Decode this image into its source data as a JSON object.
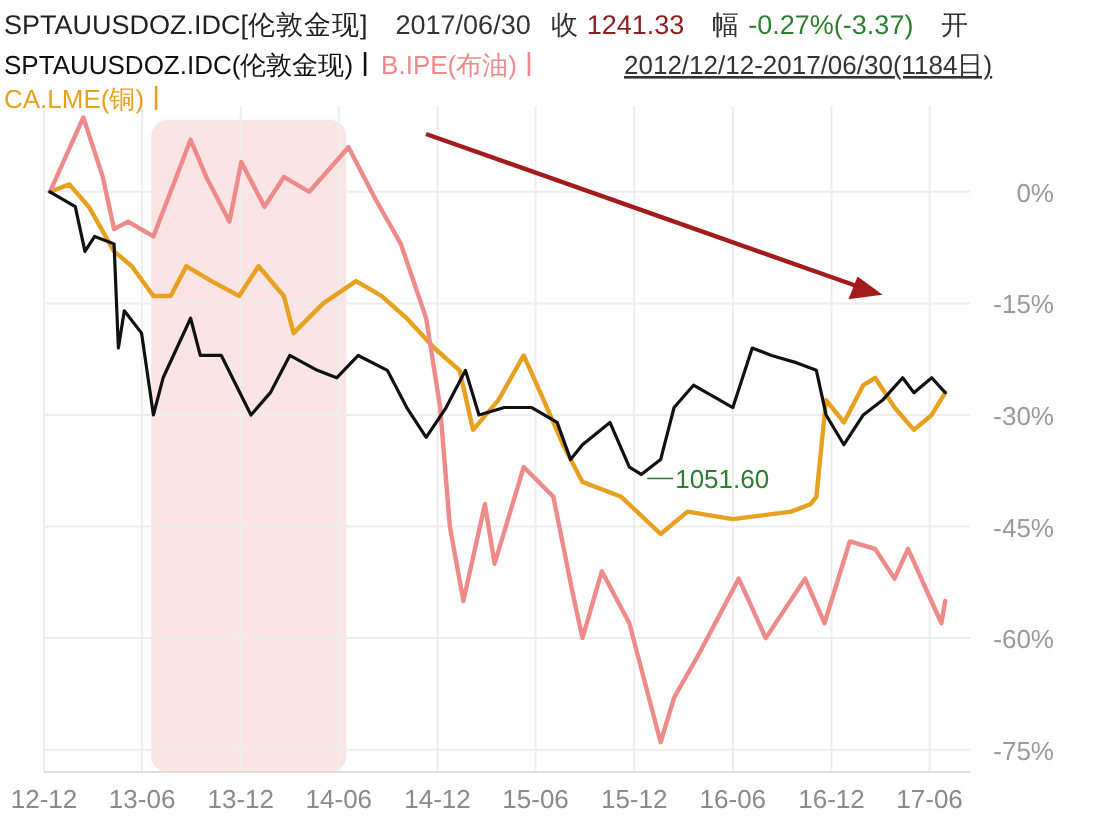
{
  "chart_data": {
    "type": "line",
    "annotations": [
      "SPTAUUSDOZ.IDC[伦敦金现]",
      "2017/06/30",
      "收",
      "1241.33",
      "幅",
      "-0.27%(-3.37)",
      "开",
      "2012/12/12-2017/06/30(1184日)",
      {
        "text": "1051.60",
        "x": "2015-12-14",
        "y": -38
      }
    ],
    "xlim": [
      "2012-12-01",
      "2017-08-15"
    ],
    "ylim": [
      -78,
      11
    ],
    "xticks": [
      {
        "value": "2012-12-01",
        "label": "12-12"
      },
      {
        "value": "2013-06-01",
        "label": "13-06"
      },
      {
        "value": "2013-12-01",
        "label": "13-12"
      },
      {
        "value": "2014-06-01",
        "label": "14-06"
      },
      {
        "value": "2014-12-01",
        "label": "14-12"
      },
      {
        "value": "2015-06-01",
        "label": "15-06"
      },
      {
        "value": "2015-12-01",
        "label": "15-12"
      },
      {
        "value": "2016-06-01",
        "label": "16-06"
      },
      {
        "value": "2016-12-01",
        "label": "16-12"
      },
      {
        "value": "2017-06-01",
        "label": "17-06"
      }
    ],
    "yticks": [
      {
        "value": 0,
        "label": "0%"
      },
      {
        "value": -15,
        "label": "-15%"
      },
      {
        "value": -30,
        "label": "-30%"
      },
      {
        "value": -45,
        "label": "-45%"
      },
      {
        "value": -60,
        "label": "-60%"
      },
      {
        "value": -75,
        "label": "-75%"
      }
    ],
    "grid": true,
    "legend": "top left",
    "bands": [
      {
        "axis": "x",
        "from": "2013-06-18",
        "to": "2014-06-15",
        "color": "#fbe4e4"
      }
    ],
    "series": [
      {
        "name": "SPTAUUSDOZ.IDC(伦敦金现)",
        "color": "#111111",
        "x": [
          "2012-12-12",
          "2013-01-28",
          "2013-02-15",
          "2013-03-05",
          "2013-04-10",
          "2013-04-18",
          "2013-04-29",
          "2013-05-31",
          "2013-06-22",
          "2013-07-10",
          "2013-08-30",
          "2013-09-17",
          "2013-10-26",
          "2013-12-20",
          "2014-01-25",
          "2014-03-02",
          "2014-04-22",
          "2014-05-28",
          "2014-07-07",
          "2014-08-30",
          "2014-10-05",
          "2014-11-10",
          "2014-12-17",
          "2015-01-22",
          "2015-02-16",
          "2015-04-04",
          "2015-05-25",
          "2015-07-11",
          "2015-08-05",
          "2015-08-27",
          "2015-10-17",
          "2015-11-22",
          "2015-12-14",
          "2016-01-19",
          "2016-02-13",
          "2016-03-20",
          "2016-06-01",
          "2016-07-07",
          "2016-08-12",
          "2016-09-28",
          "2016-11-03",
          "2016-11-21",
          "2016-12-24",
          "2017-01-29",
          "2017-03-06",
          "2017-04-12",
          "2017-05-03",
          "2017-06-05",
          "2017-06-30"
        ],
        "values": [
          0,
          -2,
          -8,
          -6,
          -7,
          -21,
          -16,
          -19,
          -30,
          -25,
          -17,
          -22,
          -22,
          -30,
          -27,
          -22,
          -24,
          -25,
          -22,
          -24,
          -29,
          -33,
          -29,
          -24,
          -30,
          -29,
          -29,
          -31,
          -36,
          -34,
          -31,
          -37,
          -38,
          -36,
          -29,
          -26,
          -29,
          -21,
          -22,
          -23,
          -24,
          -30,
          -34,
          -30,
          -28,
          -25,
          -27,
          -25,
          -27
        ]
      },
      {
        "name": "B.IPE(布油)",
        "color": "#ee8a8a",
        "x": [
          "2012-12-12",
          "2013-02-12",
          "2013-03-20",
          "2013-04-10",
          "2013-05-06",
          "2013-06-22",
          "2013-08-30",
          "2013-09-28",
          "2013-11-10",
          "2013-12-02",
          "2014-01-14",
          "2014-02-19",
          "2014-04-07",
          "2014-06-19",
          "2014-08-08",
          "2014-09-24",
          "2014-11-10",
          "2014-12-06",
          "2014-12-24",
          "2015-01-18",
          "2015-02-27",
          "2015-03-17",
          "2015-05-10",
          "2015-07-04",
          "2015-08-09",
          "2015-08-27",
          "2015-10-02",
          "2015-11-22",
          "2016-01-19",
          "2016-02-13",
          "2016-03-31",
          "2016-06-12",
          "2016-08-01",
          "2016-10-13",
          "2016-11-18",
          "2017-01-04",
          "2017-02-20",
          "2017-03-28",
          "2017-04-22",
          "2017-05-29",
          "2017-06-23",
          "2017-06-30"
        ],
        "values": [
          0,
          10,
          2,
          -5,
          -4,
          -6,
          7,
          2,
          -4,
          4,
          -2,
          2,
          0,
          6,
          -1,
          -7,
          -17,
          -29,
          -45,
          -55,
          -42,
          -50,
          -37,
          -41,
          -54,
          -60,
          -51,
          -58,
          -74,
          -68,
          -62,
          -52,
          -60,
          -52,
          -58,
          -47,
          -48,
          -52,
          -48,
          -54,
          -58,
          -55
        ]
      },
      {
        "name": "CA.LME(铜)",
        "color": "#e8a020",
        "x": [
          "2012-12-12",
          "2013-01-17",
          "2013-02-22",
          "2013-04-10",
          "2013-05-13",
          "2013-06-22",
          "2013-07-24",
          "2013-08-22",
          "2013-10-08",
          "2013-11-28",
          "2014-01-03",
          "2014-02-19",
          "2014-03-09",
          "2014-05-03",
          "2014-07-03",
          "2014-08-19",
          "2014-10-05",
          "2014-11-25",
          "2015-01-11",
          "2015-02-05",
          "2015-03-24",
          "2015-05-10",
          "2015-06-16",
          "2015-07-22",
          "2015-08-27",
          "2015-11-07",
          "2016-01-19",
          "2016-03-09",
          "2016-06-01",
          "2016-09-17",
          "2016-10-23",
          "2016-11-03",
          "2016-11-21",
          "2016-12-24",
          "2017-01-29",
          "2017-02-20",
          "2017-03-28",
          "2017-05-03",
          "2017-06-05",
          "2017-06-30"
        ],
        "values": [
          0,
          1,
          -2,
          -8,
          -10,
          -14,
          -14,
          -10,
          -12,
          -14,
          -10,
          -14,
          -19,
          -15,
          -12,
          -14,
          -17,
          -21,
          -24,
          -32,
          -28,
          -22,
          -28,
          -34,
          -39,
          -41,
          -46,
          -43,
          -44,
          -43,
          -42,
          -41,
          -28,
          -31,
          -26,
          -25,
          -29,
          -32,
          -30,
          -27
        ]
      }
    ]
  }
}
